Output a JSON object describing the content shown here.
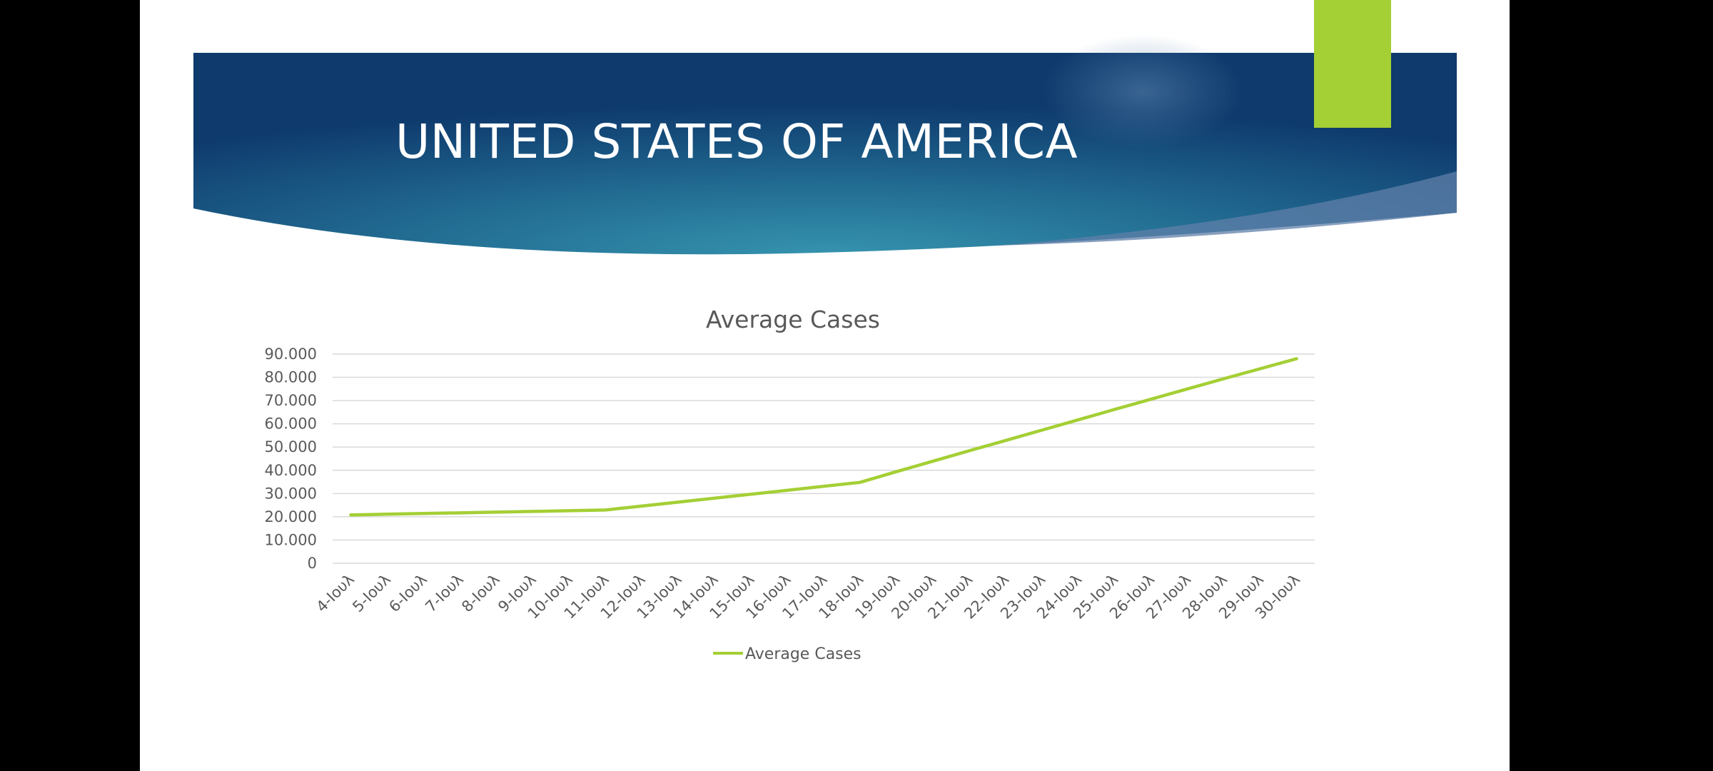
{
  "slide": {
    "title": "UNITED STATES OF AMERICA"
  },
  "colors": {
    "header_dark": "#0f3d72",
    "header_light": "#2f8aa8",
    "accent": "#a4cf35",
    "grid": "#d9d9d9",
    "text": "#595959"
  },
  "chart_data": {
    "type": "line",
    "title": "Average Cases",
    "categories": [
      "4-Ιουλ",
      "5-Ιουλ",
      "6-Ιουλ",
      "7-Ιουλ",
      "8-Ιουλ",
      "9-Ιουλ",
      "10-Ιουλ",
      "11-Ιουλ",
      "12-Ιουλ",
      "13-Ιουλ",
      "14-Ιουλ",
      "15-Ιουλ",
      "16-Ιουλ",
      "17-Ιουλ",
      "18-Ιουλ",
      "19-Ιουλ",
      "20-Ιουλ",
      "21-Ιουλ",
      "22-Ιουλ",
      "23-Ιουλ",
      "24-Ιουλ",
      "25-Ιουλ",
      "26-Ιουλ",
      "27-Ιουλ",
      "28-Ιουλ",
      "29-Ιουλ",
      "30-Ιουλ"
    ],
    "series": [
      {
        "name": "Average Cases",
        "color": "#a4cf35",
        "values": [
          20800,
          21100,
          21400,
          21700,
          22000,
          22300,
          22600,
          22900,
          24600,
          26300,
          28000,
          29700,
          31400,
          33100,
          34800,
          39400,
          43900,
          48400,
          52800,
          57300,
          61700,
          66200,
          70600,
          75000,
          79400,
          83700,
          88000
        ]
      }
    ],
    "yticks": [
      "0",
      "10.000",
      "20.000",
      "30.000",
      "40.000",
      "50.000",
      "60.000",
      "70.000",
      "80.000",
      "90.000"
    ],
    "ylim": [
      0,
      90000
    ],
    "grid": true,
    "legend": "bottom"
  }
}
